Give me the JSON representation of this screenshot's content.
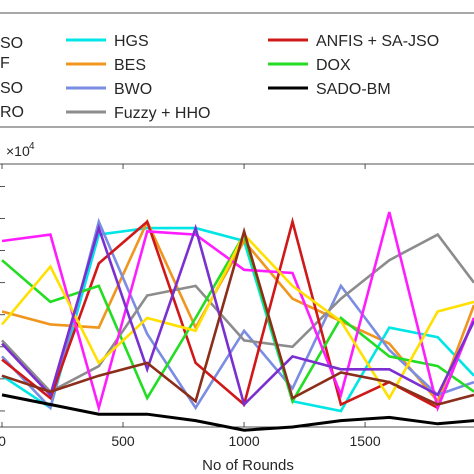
{
  "chart_data": {
    "type": "line",
    "title": "",
    "xlabel": "No of Rounds",
    "ylabel": "",
    "y_exponent_label": "×10",
    "y_exponent_power": "4",
    "xlim": [
      0,
      1950
    ],
    "ylim": [
      0.7,
      1.52
    ],
    "x_ticks": [
      0,
      500,
      1000,
      1500
    ],
    "x_tick_labels": [
      "0",
      "500",
      "1000",
      "1500"
    ],
    "grid": false,
    "legend_position": "top",
    "legend_partial_labels": [
      "SO",
      "F",
      "SO",
      "RO"
    ],
    "x": [
      0,
      200,
      400,
      600,
      800,
      1000,
      1200,
      1400,
      1600,
      1800,
      1950
    ],
    "series": [
      {
        "name": "HGS",
        "color": "#00E5E5",
        "values": [
          0.86,
          0.76,
          1.3,
          1.32,
          1.32,
          1.28,
          0.78,
          0.75,
          1.01,
          0.98,
          0.86
        ]
      },
      {
        "name": "BES",
        "color": "#F0961E",
        "values": [
          1.06,
          1.02,
          1.01,
          1.34,
          1.01,
          1.28,
          1.1,
          1.03,
          0.96,
          0.78,
          1.08
        ]
      },
      {
        "name": "BWO",
        "color": "#7B8CE3",
        "values": [
          0.92,
          0.76,
          1.34,
          0.99,
          0.76,
          1.0,
          0.82,
          1.14,
          0.94,
          0.8,
          0.84
        ]
      },
      {
        "name": "Fuzzy + HHO",
        "color": "#8C8C8C",
        "values": [
          0.97,
          0.81,
          0.89,
          1.11,
          1.14,
          0.97,
          0.95,
          1.1,
          1.22,
          1.3,
          1.15
        ]
      },
      {
        "name": "ANFIS + SA-JSO",
        "color": "#D01818",
        "values": [
          0.91,
          0.79,
          1.21,
          1.34,
          0.9,
          0.77,
          1.34,
          0.77,
          0.84,
          0.76,
          1.04
        ]
      },
      {
        "name": "DOX",
        "color": "#22DD22",
        "values": [
          1.22,
          1.09,
          1.14,
          0.79,
          1.04,
          1.3,
          0.78,
          1.04,
          0.92,
          0.89,
          0.81
        ]
      },
      {
        "name": "SADO-BM",
        "color": "#000000",
        "values": [
          0.8,
          0.77,
          0.74,
          0.74,
          0.72,
          0.69,
          0.7,
          0.72,
          0.73,
          0.71,
          0.72
        ]
      },
      {
        "name": "",
        "color": "#FF1DFF",
        "values": [
          1.28,
          1.3,
          0.76,
          1.31,
          1.3,
          1.19,
          1.18,
          0.8,
          1.37,
          0.76,
          1.04
        ]
      },
      {
        "name": "",
        "color": "#FFE000",
        "values": [
          1.02,
          1.2,
          0.9,
          1.04,
          1.0,
          1.3,
          1.14,
          1.03,
          0.79,
          1.06,
          1.09
        ]
      },
      {
        "name": "",
        "color": "#7A2FD0",
        "values": [
          0.96,
          0.8,
          1.32,
          0.88,
          1.32,
          0.77,
          0.92,
          0.88,
          0.88,
          0.8,
          1.03
        ]
      },
      {
        "name": "",
        "color": "#8B2E1A",
        "values": [
          0.86,
          0.81,
          0.86,
          0.9,
          0.78,
          1.31,
          0.79,
          0.87,
          0.84,
          0.77,
          0.8
        ]
      }
    ]
  }
}
